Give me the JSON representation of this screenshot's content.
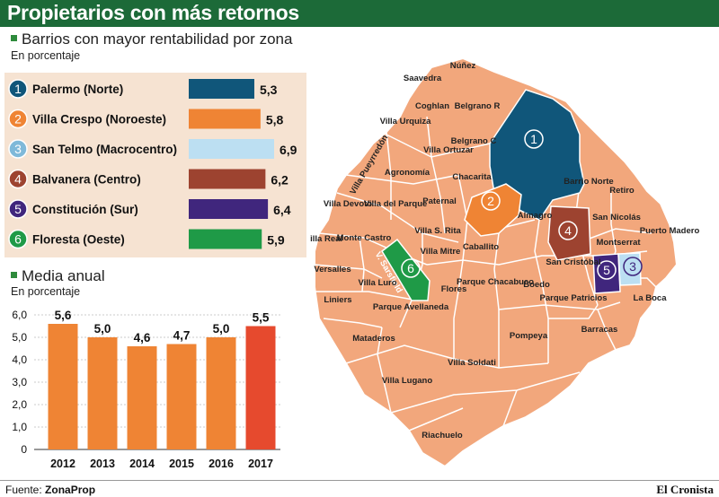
{
  "header": {
    "title": "Propietarios con más retornos"
  },
  "zones_section": {
    "title": "Barrios con mayor rentabilidad por zona",
    "subtitle": "En porcentaje"
  },
  "annual_section": {
    "title": "Media anual",
    "subtitle": "En porcentaje"
  },
  "footer": {
    "source_label": "Fuente:",
    "source_name": "ZonaProp",
    "brand": "El Cronista"
  },
  "chart_data": [
    {
      "type": "bar",
      "orientation": "horizontal",
      "title": "Barrios con mayor rentabilidad por zona",
      "subtitle": "En porcentaje",
      "categories": [
        "Palermo (Norte)",
        "Villa Crespo (Noroeste)",
        "San Telmo (Macrocentro)",
        "Balvanera (Centro)",
        "Constitución (Sur)",
        "Floresta (Oeste)"
      ],
      "numbers": [
        "1",
        "2",
        "3",
        "4",
        "5",
        "6"
      ],
      "values": [
        5.3,
        5.8,
        6.9,
        6.2,
        6.4,
        5.9
      ],
      "value_labels": [
        "5,3",
        "5,8",
        "6,9",
        "6,2",
        "6,4",
        "5,9"
      ],
      "colors": [
        "#10567a",
        "#ef8434",
        "#bcdff2",
        "#9d4330",
        "#40267d",
        "#1f9a47"
      ],
      "xlim": [
        0,
        6.9
      ]
    },
    {
      "type": "bar",
      "title": "Media anual",
      "subtitle": "En porcentaje",
      "categories": [
        "2012",
        "2013",
        "2014",
        "2015",
        "2016",
        "2017"
      ],
      "values": [
        5.6,
        5.0,
        4.6,
        4.7,
        5.0,
        5.5
      ],
      "value_labels": [
        "5,6",
        "5,0",
        "4,6",
        "4,7",
        "5,0",
        "5,5"
      ],
      "colors": [
        "#ef8434",
        "#ef8434",
        "#ef8434",
        "#ef8434",
        "#ef8434",
        "#e64a2e"
      ],
      "ylim": [
        0,
        6
      ],
      "yticks": [
        0,
        1,
        2,
        3,
        4,
        5,
        6
      ],
      "ytick_labels": [
        "0",
        "1,0",
        "2,0",
        "3,0",
        "4,0",
        "5,0",
        "6,0"
      ],
      "grid": true
    }
  ],
  "map": {
    "base_color": "#f2a77c",
    "highlight_labels": [
      "1",
      "2",
      "3",
      "4",
      "5",
      "6"
    ],
    "highlight_colors": [
      "#10567a",
      "#ef8434",
      "#bcdff2",
      "#9d4330",
      "#40267d",
      "#1f9a47"
    ],
    "neighborhoods": [
      "Saavedra",
      "Núñez",
      "Coghlan",
      "Belgrano R",
      "Villa Urquiza",
      "Belgrano C",
      "Villa Pueyrredón",
      "Villa Ortuzar",
      "Chacarita",
      "Agronomía",
      "Barrio Norte",
      "Retiro",
      "Villa Devoto",
      "Villa del Parque",
      "Paternal",
      "Almagro",
      "San Nicolás",
      "Puerto Madero",
      "Villa Real",
      "Monte Castro",
      "Villa S. Rita",
      "Villa Mitre",
      "Caballito",
      "Montserrat",
      "Versalles",
      "V. Sarsfield",
      "San Cristóbal",
      "Liniers",
      "Villa Luro",
      "Flores",
      "Parque Chacabuco",
      "Boedo",
      "Parque Patricios",
      "La Boca",
      "Parque Avellaneda",
      "Barracas",
      "Mataderos",
      "Pompeya",
      "Villa Soldati",
      "Villa Lugano",
      "Riachuelo"
    ]
  }
}
